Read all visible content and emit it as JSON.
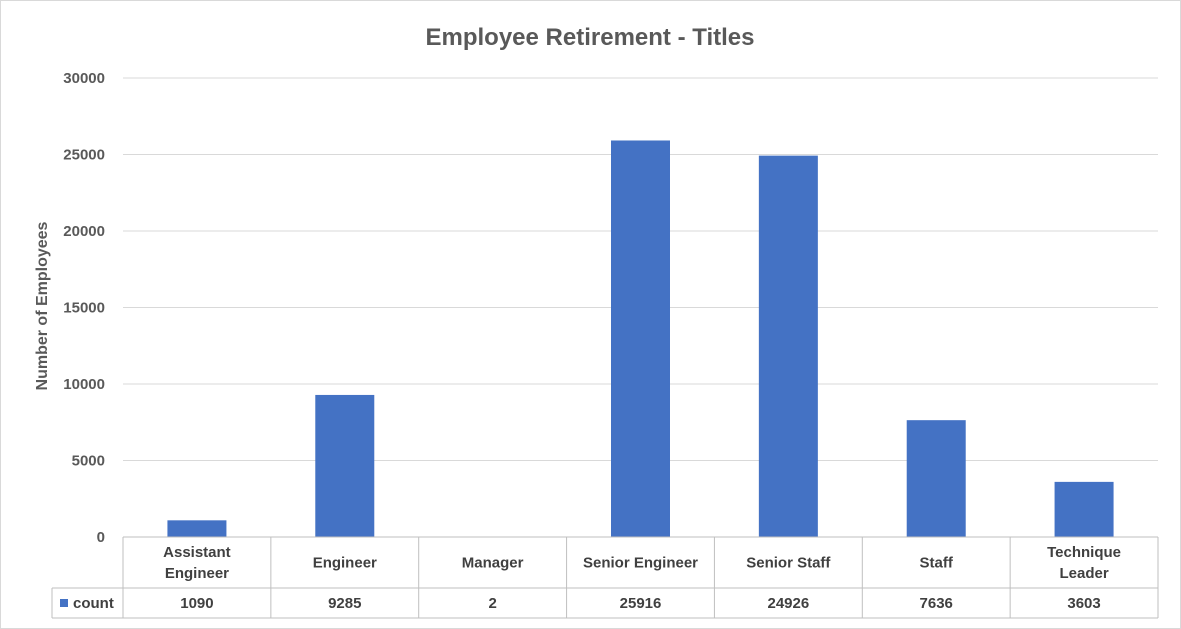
{
  "chart_data": {
    "type": "bar",
    "title": "Employee Retirement - Titles",
    "ylabel": "Number of Employees",
    "xlabel": "",
    "ylim": [
      0,
      30000
    ],
    "yticks": [
      0,
      5000,
      10000,
      15000,
      20000,
      25000,
      30000
    ],
    "categories": [
      [
        "Assistant",
        "Engineer"
      ],
      [
        "Engineer"
      ],
      [
        "Manager"
      ],
      [
        "Senior Engineer"
      ],
      [
        "Senior Staff"
      ],
      [
        "Staff"
      ],
      [
        "Technique",
        "Leader"
      ]
    ],
    "series": [
      {
        "name": "count",
        "values": [
          1090,
          9285,
          2,
          25916,
          24926,
          7636,
          3603
        ]
      }
    ],
    "grid": true,
    "legend": "data-table",
    "colors": {
      "bar": "#4472C4",
      "grid": "#D9D9D9",
      "text": "#595959"
    }
  }
}
